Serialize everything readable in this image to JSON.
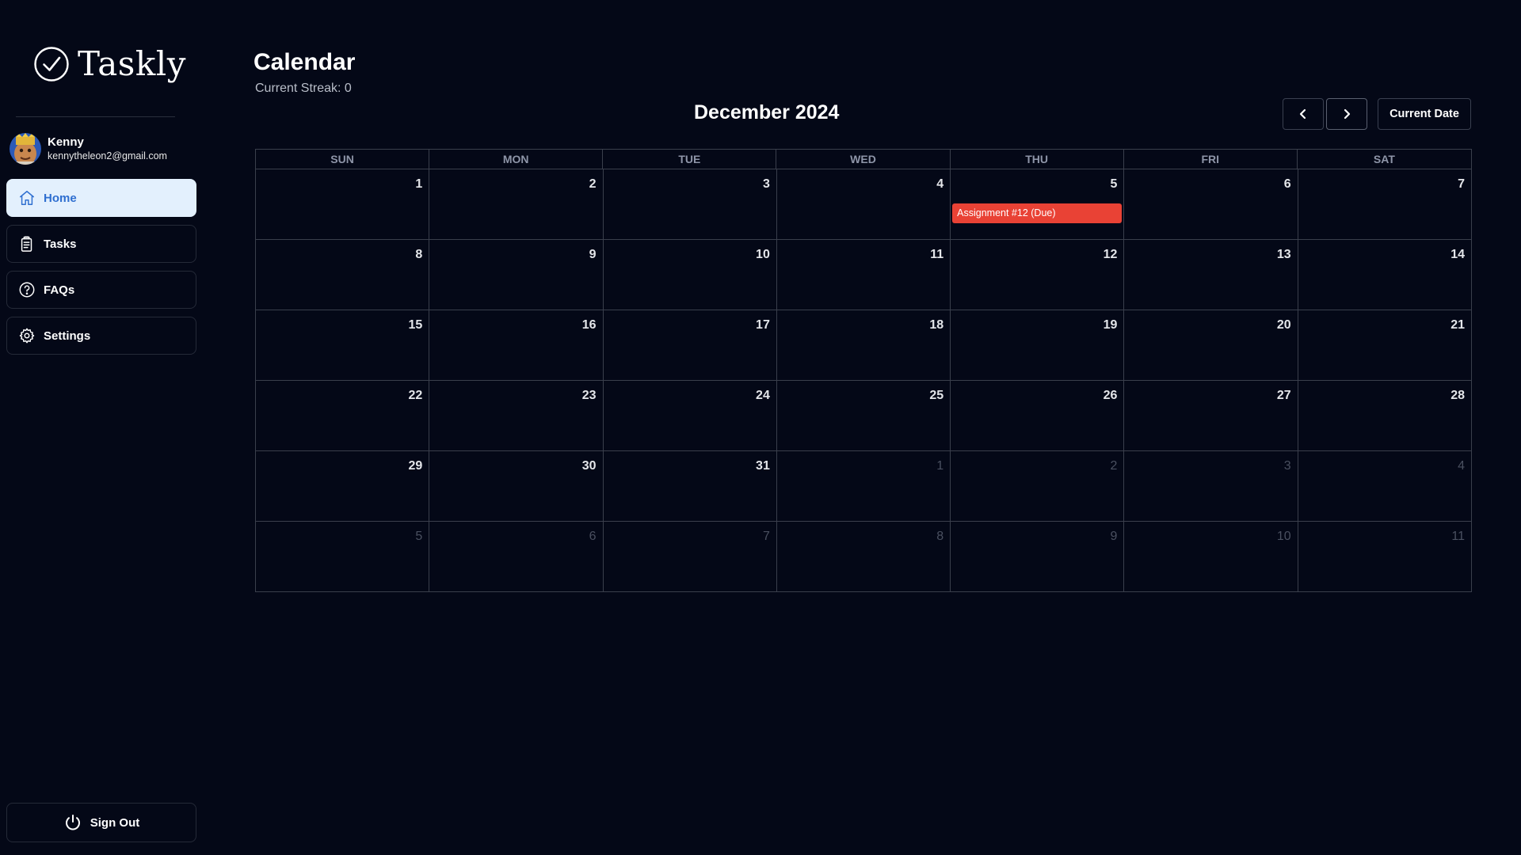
{
  "app": {
    "name": "Taskly"
  },
  "user": {
    "name": "Kenny",
    "email": "kennytheleon2@gmail.com"
  },
  "sidebar": {
    "items": [
      {
        "label": "Home",
        "icon": "home-icon",
        "active": true
      },
      {
        "label": "Tasks",
        "icon": "clipboard-icon",
        "active": false
      },
      {
        "label": "FAQs",
        "icon": "question-circle-icon",
        "active": false
      },
      {
        "label": "Settings",
        "icon": "gear-icon",
        "active": false
      }
    ],
    "signout_label": "Sign Out"
  },
  "header": {
    "title": "Calendar",
    "streak": "Current Streak: 0"
  },
  "calendar": {
    "month_label": "December 2024",
    "current_date_label": "Current Date",
    "weekdays": [
      "SUN",
      "MON",
      "TUE",
      "WED",
      "THU",
      "FRI",
      "SAT"
    ],
    "weeks": [
      [
        {
          "day": "1"
        },
        {
          "day": "2"
        },
        {
          "day": "3"
        },
        {
          "day": "4"
        },
        {
          "day": "5",
          "event": "Assignment #12 (Due)"
        },
        {
          "day": "6"
        },
        {
          "day": "7"
        }
      ],
      [
        {
          "day": "8"
        },
        {
          "day": "9"
        },
        {
          "day": "10"
        },
        {
          "day": "11"
        },
        {
          "day": "12"
        },
        {
          "day": "13"
        },
        {
          "day": "14"
        }
      ],
      [
        {
          "day": "15"
        },
        {
          "day": "16"
        },
        {
          "day": "17"
        },
        {
          "day": "18"
        },
        {
          "day": "19"
        },
        {
          "day": "20"
        },
        {
          "day": "21"
        }
      ],
      [
        {
          "day": "22"
        },
        {
          "day": "23"
        },
        {
          "day": "24"
        },
        {
          "day": "25"
        },
        {
          "day": "26"
        },
        {
          "day": "27"
        },
        {
          "day": "28"
        }
      ],
      [
        {
          "day": "29"
        },
        {
          "day": "30"
        },
        {
          "day": "31"
        },
        {
          "day": "1",
          "other": true
        },
        {
          "day": "2",
          "other": true
        },
        {
          "day": "3",
          "other": true
        },
        {
          "day": "4",
          "other": true
        }
      ],
      [
        {
          "day": "5",
          "other": true
        },
        {
          "day": "6",
          "other": true
        },
        {
          "day": "7",
          "other": true
        },
        {
          "day": "8",
          "other": true
        },
        {
          "day": "9",
          "other": true
        },
        {
          "day": "10",
          "other": true
        },
        {
          "day": "11",
          "other": true
        }
      ]
    ]
  },
  "colors": {
    "background": "#040817",
    "active_nav_bg": "#e3f0fd",
    "active_nav_text": "#2f6fd0",
    "event": "#e94235"
  }
}
